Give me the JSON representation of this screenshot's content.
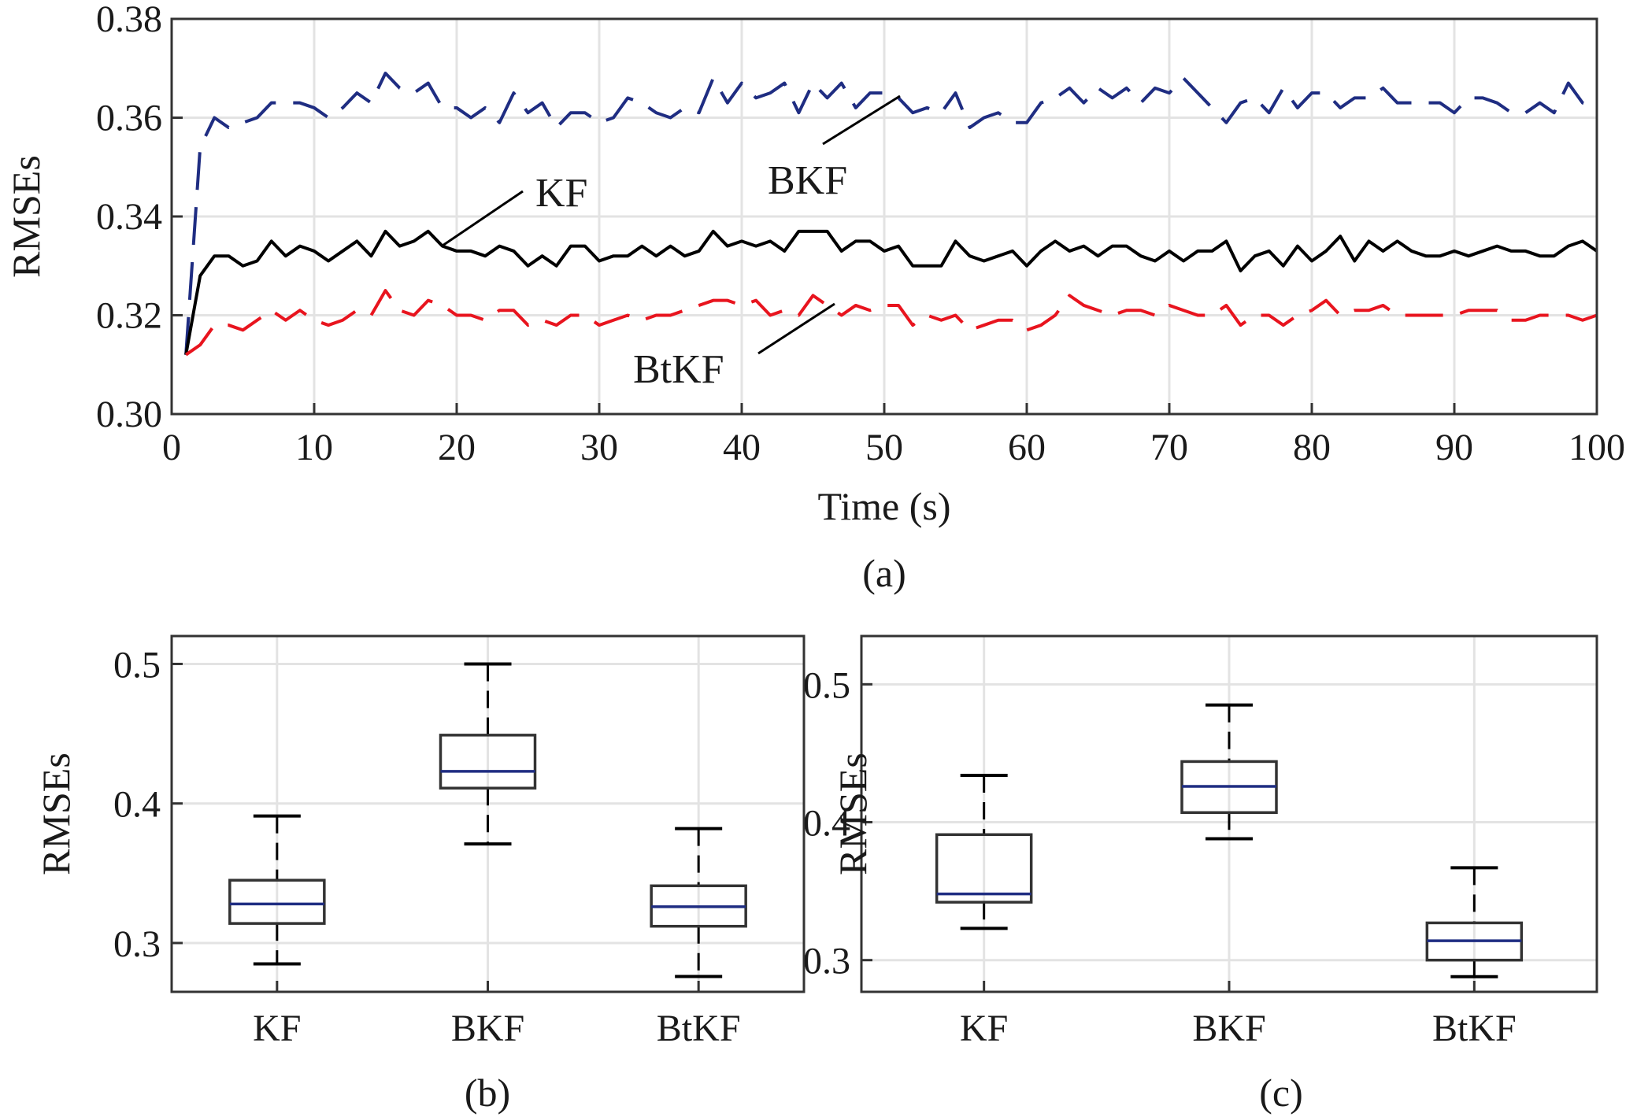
{
  "chart_data": [
    {
      "panel_label": "(a)",
      "type": "line",
      "xlabel": "Time (s)",
      "ylabel": "RMSEs",
      "xlim": [
        0,
        100
      ],
      "ylim": [
        0.3,
        0.38
      ],
      "xticks": [
        "0",
        "10",
        "20",
        "30",
        "40",
        "50",
        "60",
        "70",
        "80",
        "90",
        "100"
      ],
      "yticks": [
        "0.30",
        "0.32",
        "0.34",
        "0.36",
        "0.38"
      ],
      "grid": true,
      "x": [
        1,
        2,
        3,
        4,
        5,
        6,
        7,
        8,
        9,
        10,
        11,
        12,
        13,
        14,
        15,
        16,
        17,
        18,
        19,
        20,
        21,
        22,
        23,
        24,
        25,
        26,
        27,
        28,
        29,
        30,
        31,
        32,
        33,
        34,
        35,
        36,
        37,
        38,
        39,
        40,
        41,
        42,
        43,
        44,
        45,
        46,
        47,
        48,
        49,
        50,
        51,
        52,
        53,
        54,
        55,
        56,
        57,
        58,
        59,
        60,
        61,
        62,
        63,
        64,
        65,
        66,
        67,
        68,
        69,
        70,
        71,
        72,
        73,
        74,
        75,
        76,
        77,
        78,
        79,
        80,
        81,
        82,
        83,
        84,
        85,
        86,
        87,
        88,
        89,
        90,
        91,
        92,
        93,
        94,
        95,
        96,
        97,
        98,
        99,
        100
      ],
      "series": [
        {
          "name": "BKF",
          "color": "#1f2d82",
          "style": "dashed",
          "values": [
            0.312,
            0.354,
            0.36,
            0.358,
            0.359,
            0.36,
            0.363,
            0.363,
            0.363,
            0.362,
            0.36,
            0.362,
            0.365,
            0.363,
            0.369,
            0.366,
            0.365,
            0.367,
            0.362,
            0.362,
            0.36,
            0.362,
            0.359,
            0.365,
            0.361,
            0.363,
            0.358,
            0.361,
            0.361,
            0.359,
            0.36,
            0.364,
            0.363,
            0.361,
            0.36,
            0.362,
            0.361,
            0.368,
            0.363,
            0.367,
            0.364,
            0.365,
            0.367,
            0.361,
            0.367,
            0.364,
            0.367,
            0.362,
            0.365,
            0.365,
            0.364,
            0.361,
            0.362,
            0.361,
            0.365,
            0.358,
            0.36,
            0.361,
            0.359,
            0.359,
            0.363,
            0.364,
            0.366,
            0.363,
            0.366,
            0.364,
            0.366,
            0.363,
            0.366,
            0.365,
            0.368,
            0.365,
            0.362,
            0.359,
            0.363,
            0.364,
            0.361,
            0.366,
            0.362,
            0.365,
            0.365,
            0.362,
            0.364,
            0.364,
            0.366,
            0.363,
            0.363,
            0.363,
            0.363,
            0.361,
            0.364,
            0.364,
            0.363,
            0.361,
            0.361,
            0.363,
            0.361,
            0.367,
            0.363,
            0.362
          ]
        },
        {
          "name": "KF",
          "color": "#000000",
          "style": "solid",
          "values": [
            0.312,
            0.328,
            0.332,
            0.332,
            0.33,
            0.331,
            0.335,
            0.332,
            0.334,
            0.333,
            0.331,
            0.333,
            0.335,
            0.332,
            0.337,
            0.334,
            0.335,
            0.337,
            0.334,
            0.333,
            0.333,
            0.332,
            0.334,
            0.333,
            0.33,
            0.332,
            0.33,
            0.334,
            0.334,
            0.331,
            0.332,
            0.332,
            0.334,
            0.332,
            0.334,
            0.332,
            0.333,
            0.337,
            0.334,
            0.335,
            0.334,
            0.335,
            0.333,
            0.337,
            0.337,
            0.337,
            0.333,
            0.335,
            0.335,
            0.333,
            0.334,
            0.33,
            0.33,
            0.33,
            0.335,
            0.332,
            0.331,
            0.332,
            0.333,
            0.33,
            0.333,
            0.335,
            0.333,
            0.334,
            0.332,
            0.334,
            0.334,
            0.332,
            0.331,
            0.333,
            0.331,
            0.333,
            0.333,
            0.335,
            0.329,
            0.332,
            0.333,
            0.33,
            0.334,
            0.331,
            0.333,
            0.336,
            0.331,
            0.335,
            0.333,
            0.335,
            0.333,
            0.332,
            0.332,
            0.333,
            0.332,
            0.333,
            0.334,
            0.333,
            0.333,
            0.332,
            0.332,
            0.334,
            0.335,
            0.333
          ]
        },
        {
          "name": "BtKF",
          "color": "#e8141e",
          "style": "dashed",
          "values": [
            0.312,
            0.314,
            0.318,
            0.318,
            0.317,
            0.319,
            0.321,
            0.319,
            0.321,
            0.319,
            0.318,
            0.319,
            0.321,
            0.32,
            0.325,
            0.321,
            0.32,
            0.323,
            0.322,
            0.32,
            0.32,
            0.319,
            0.321,
            0.321,
            0.318,
            0.319,
            0.318,
            0.32,
            0.32,
            0.318,
            0.319,
            0.32,
            0.319,
            0.32,
            0.32,
            0.321,
            0.322,
            0.323,
            0.323,
            0.322,
            0.323,
            0.32,
            0.321,
            0.32,
            0.324,
            0.322,
            0.32,
            0.322,
            0.321,
            0.322,
            0.322,
            0.318,
            0.32,
            0.319,
            0.32,
            0.317,
            0.318,
            0.319,
            0.319,
            0.317,
            0.318,
            0.32,
            0.324,
            0.322,
            0.321,
            0.32,
            0.321,
            0.321,
            0.32,
            0.322,
            0.321,
            0.32,
            0.32,
            0.322,
            0.318,
            0.32,
            0.32,
            0.318,
            0.32,
            0.321,
            0.323,
            0.32,
            0.321,
            0.321,
            0.322,
            0.32,
            0.32,
            0.32,
            0.32,
            0.32,
            0.321,
            0.321,
            0.321,
            0.319,
            0.319,
            0.32,
            0.32,
            0.32,
            0.319,
            0.32
          ]
        }
      ],
      "annotations": [
        {
          "text": "BKF",
          "series": "BKF"
        },
        {
          "text": "KF",
          "series": "KF"
        },
        {
          "text": "BtKF",
          "series": "BtKF"
        }
      ]
    },
    {
      "panel_label": "(b)",
      "type": "box",
      "ylabel": "RMSEs",
      "categories": [
        "KF",
        "BKF",
        "BtKF"
      ],
      "ylim": [
        0.265,
        0.52
      ],
      "yticks": [
        "0.3",
        "0.4",
        "0.5"
      ],
      "grid": true,
      "box_color": "#333333",
      "median_color": "#1f2d82",
      "boxes": [
        {
          "min": 0.285,
          "q1": 0.314,
          "median": 0.328,
          "q3": 0.345,
          "max": 0.391
        },
        {
          "min": 0.371,
          "q1": 0.411,
          "median": 0.423,
          "q3": 0.449,
          "max": 0.5
        },
        {
          "min": 0.276,
          "q1": 0.312,
          "median": 0.326,
          "q3": 0.341,
          "max": 0.382
        }
      ]
    },
    {
      "panel_label": "(c)",
      "type": "box",
      "ylabel": "RMSEs",
      "categories": [
        "KF",
        "BKF",
        "BtKF"
      ],
      "ylim": [
        0.277,
        0.535
      ],
      "yticks": [
        "0.3",
        "0.4",
        "0.5"
      ],
      "grid": true,
      "box_color": "#333333",
      "median_color": "#1f2d82",
      "boxes": [
        {
          "min": 0.323,
          "q1": 0.342,
          "median": 0.348,
          "q3": 0.391,
          "max": 0.434
        },
        {
          "min": 0.388,
          "q1": 0.407,
          "median": 0.426,
          "q3": 0.444,
          "max": 0.485
        },
        {
          "min": 0.288,
          "q1": 0.3,
          "median": 0.314,
          "q3": 0.327,
          "max": 0.367
        }
      ]
    }
  ]
}
